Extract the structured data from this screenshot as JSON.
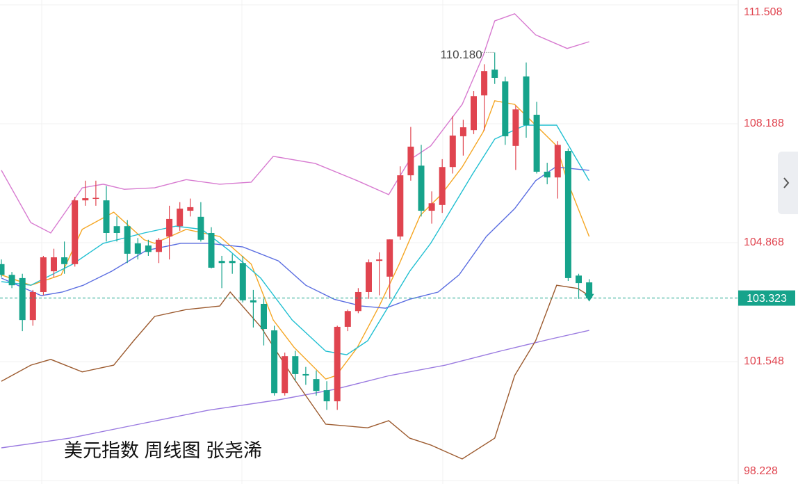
{
  "chart_data": {
    "type": "candlestick",
    "title": "美元指数 周线图 张尧浠",
    "annotation": "110.180",
    "up_color": "#e0444f",
    "down_color": "#16a38b",
    "ylim": [
      98.131,
      111.644
    ],
    "yticks": [
      111.508,
      108.188,
      104.868,
      101.548,
      98.228
    ],
    "grid": true,
    "open": [
      104.27,
      103.97,
      103.88,
      102.71,
      103.49,
      104.07,
      104.46,
      104.27,
      106.05,
      106.11,
      106.05,
      105.33,
      105.33,
      104.85,
      104.79,
      104.61,
      105.04,
      105.33,
      105.76,
      105.59,
      105.14,
      104.36,
      104.36,
      104.3,
      103.26,
      103.16,
      102.42,
      100.67,
      101.7,
      101.2,
      101.06,
      100.75,
      100.44,
      102.52,
      102.96,
      103.49,
      104.36,
      103.92,
      105.04,
      106.75,
      107.02,
      105.76,
      105.92,
      106.98,
      107.84,
      108.01,
      108.98,
      109.7,
      109.37,
      107.57,
      109.51,
      108.44,
      106.85,
      106.69,
      107.43,
      103.95,
      103.76
    ],
    "high": [
      104.4,
      104.05,
      104.0,
      103.55,
      104.5,
      104.7,
      104.9,
      106.15,
      106.6,
      106.6,
      106.45,
      105.6,
      105.5,
      105.0,
      104.95,
      105.0,
      105.9,
      106.0,
      106.1,
      106.0,
      105.3,
      104.5,
      104.55,
      104.5,
      103.55,
      103.3,
      102.55,
      101.8,
      101.85,
      101.4,
      101.3,
      101.0,
      102.55,
      103.0,
      103.6,
      104.4,
      104.6,
      104.96,
      107.0,
      108.1,
      107.6,
      106.3,
      107.2,
      108.4,
      108.3,
      109.1,
      109.85,
      110.18,
      109.5,
      108.7,
      109.9,
      108.8,
      107.1,
      107.7,
      107.5,
      104.0,
      103.85
    ],
    "low": [
      103.9,
      103.6,
      102.4,
      102.55,
      103.4,
      103.9,
      104.0,
      104.2,
      105.9,
      105.9,
      104.9,
      104.9,
      104.3,
      104.4,
      104.5,
      104.3,
      104.4,
      105.2,
      105.6,
      104.9,
      104.15,
      103.6,
      104.0,
      103.2,
      102.5,
      102.0,
      100.6,
      100.6,
      101.0,
      100.9,
      100.6,
      100.2,
      100.2,
      102.4,
      102.9,
      103.3,
      103.4,
      103.3,
      104.95,
      106.6,
      105.6,
      105.4,
      105.7,
      106.8,
      107.3,
      107.9,
      108.0,
      109.3,
      107.6,
      106.9,
      107.8,
      106.8,
      106.5,
      106.1,
      103.8,
      103.3,
      103.25
    ],
    "close": [
      103.97,
      103.68,
      102.71,
      103.49,
      104.46,
      104.46,
      104.27,
      106.05,
      106.11,
      106.12,
      105.14,
      105.14,
      104.56,
      104.56,
      104.61,
      104.95,
      105.53,
      105.82,
      105.86,
      104.95,
      104.17,
      104.3,
      104.3,
      103.26,
      103.2,
      102.46,
      100.67,
      101.7,
      101.2,
      101.16,
      100.73,
      100.44,
      102.52,
      102.96,
      103.49,
      104.32,
      104.4,
      104.96,
      106.75,
      107.55,
      105.76,
      105.97,
      106.98,
      107.86,
      108.09,
      108.96,
      109.66,
      109.47,
      107.84,
      108.59,
      108.15,
      106.85,
      106.69,
      107.6,
      103.88,
      103.74,
      103.323
    ],
    "lines": [
      {
        "color": "#f5a623",
        "x": [
          0,
          2.8,
          5.7,
          7.7,
          10.7,
          13.6,
          14.6,
          17.6,
          20.8,
          23.8,
          25.9,
          27.9,
          30.9,
          31.9,
          33.9,
          36.0,
          37.9,
          39.9,
          41.9,
          43.9,
          45.9,
          47.0,
          48.9,
          50.9,
          52.9,
          53.9,
          56.0
        ],
        "values": [
          103.97,
          103.68,
          103.97,
          105.24,
          105.72,
          104.95,
          104.85,
          105.24,
          105.04,
          104.27,
          102.71,
          101.94,
          101.06,
          101.16,
          101.94,
          103.1,
          104.27,
          105.63,
          106.21,
          106.98,
          107.96,
          108.83,
          108.73,
          108.15,
          107.57,
          106.6,
          105.04
        ]
      },
      {
        "color": "#1fbfd1",
        "x": [
          0,
          2.8,
          6.8,
          9.7,
          13.6,
          16.6,
          19.1,
          21.7,
          24.7,
          27.7,
          30.9,
          32.9,
          34.9,
          36.9,
          38.9,
          40.9,
          42.9,
          44.9,
          47.0,
          49.9,
          52.9,
          56.0
        ],
        "values": [
          103.78,
          103.68,
          104.27,
          104.85,
          105.14,
          105.33,
          105.24,
          104.65,
          103.88,
          102.71,
          101.84,
          101.74,
          102.13,
          103.1,
          104.07,
          104.85,
          105.82,
          106.79,
          107.76,
          108.15,
          108.15,
          106.6
        ]
      },
      {
        "color": "#5b6ee1",
        "x": [
          0,
          3.8,
          5.8,
          7.8,
          10.5,
          13.8,
          17.1,
          19.7,
          23.0,
          26.4,
          29.0,
          31.7,
          34.3,
          36.6,
          38.9,
          41.6,
          43.6,
          46.2,
          48.9,
          50.9,
          52.8,
          56.0
        ],
        "values": [
          103.88,
          103.39,
          103.49,
          103.68,
          104.07,
          104.65,
          104.85,
          104.85,
          104.75,
          104.36,
          103.68,
          103.29,
          103.1,
          103.04,
          103.29,
          103.49,
          103.97,
          105.04,
          105.82,
          106.6,
          106.98,
          106.89
        ]
      },
      {
        "color": "#9a7ae0",
        "x": [
          0,
          6.5,
          13.1,
          19.7,
          26.4,
          31.7,
          37.0,
          42.3,
          47.5,
          52.2,
          56.0
        ],
        "values": [
          99.14,
          99.41,
          99.8,
          100.19,
          100.48,
          100.77,
          101.16,
          101.45,
          101.84,
          102.17,
          102.42
        ]
      },
      {
        "color": "#d77ad0",
        "x": [
          0,
          2.8,
          4.7,
          7.7,
          9.7,
          11.7,
          14.6,
          17.6,
          20.8,
          23.8,
          25.9,
          29.9,
          33.9,
          36.9,
          38.9,
          40.9,
          43.9,
          45.9,
          47.0,
          48.9,
          50.9,
          53.9,
          56.0
        ],
        "values": [
          106.89,
          105.43,
          105.14,
          106.4,
          106.5,
          106.36,
          106.4,
          106.63,
          106.5,
          106.56,
          107.28,
          107.08,
          106.6,
          106.21,
          107.18,
          107.57,
          108.73,
          110.09,
          111.06,
          111.26,
          110.67,
          110.29,
          110.48
        ]
      },
      {
        "color": "#9c5a2e",
        "x": [
          0,
          2.8,
          4.7,
          7.7,
          10.7,
          12.6,
          14.6,
          17.6,
          20.8,
          21.8,
          24.7,
          27.9,
          30.9,
          34.9,
          36.9,
          38.9,
          40.9,
          43.9,
          47.0,
          48.9,
          50.9,
          52.9,
          54.9,
          56.0
        ],
        "values": [
          101.0,
          101.45,
          101.61,
          101.26,
          101.45,
          102.13,
          102.81,
          103.0,
          103.1,
          103.49,
          102.52,
          101.06,
          99.8,
          99.7,
          99.9,
          99.41,
          99.22,
          98.83,
          99.41,
          101.16,
          102.13,
          103.68,
          103.59,
          103.39
        ]
      }
    ]
  }
}
